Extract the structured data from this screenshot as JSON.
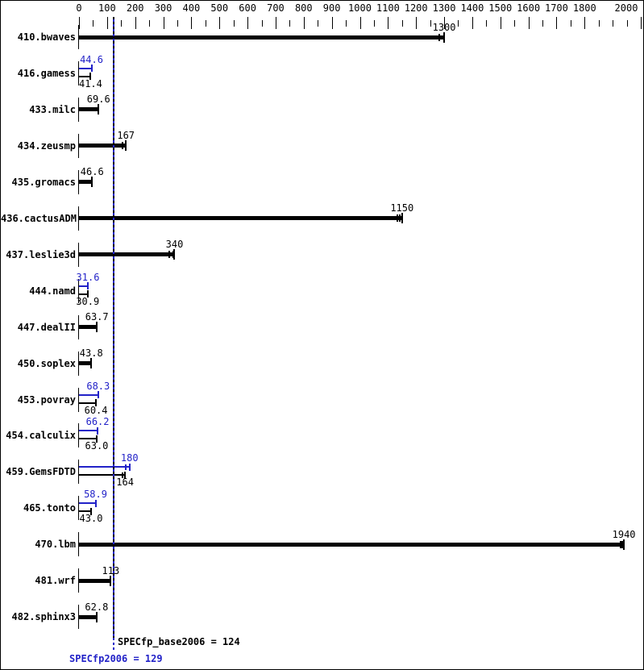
{
  "colors": {
    "base": "#000000",
    "peak": "#2222c8",
    "background": "#ffffff",
    "border": "#000000"
  },
  "chart_data": {
    "type": "bar",
    "orientation": "horizontal",
    "title": "",
    "xlabel": "",
    "ylabel": "",
    "xlim": [
      0,
      2000
    ],
    "x_major_tick": 100,
    "x_minor_tick": 50,
    "skipped_tick_labels": [
      1900
    ],
    "grid": false,
    "legend": "none",
    "benchmarks": [
      {
        "name": "410.bwaves",
        "base": {
          "label": "1300",
          "value": 1300,
          "run_marks": [
            -6,
            0
          ]
        },
        "peak": null
      },
      {
        "name": "416.gamess",
        "base": {
          "label": "41.4",
          "value": 41.4,
          "run_marks": [
            0
          ]
        },
        "peak": {
          "label": "44.6",
          "value": 44.6,
          "run_marks": [
            0
          ]
        }
      },
      {
        "name": "433.milc",
        "base": {
          "label": "69.6",
          "value": 69.6,
          "run_marks": [
            0
          ]
        },
        "peak": null
      },
      {
        "name": "434.zeusmp",
        "base": {
          "label": "167",
          "value": 167,
          "run_marks": [
            -4,
            0
          ]
        },
        "peak": null
      },
      {
        "name": "435.gromacs",
        "base": {
          "label": "46.6",
          "value": 46.6,
          "run_marks": [
            0
          ]
        },
        "peak": null
      },
      {
        "name": "436.cactusADM",
        "base": {
          "label": "1150",
          "value": 1150,
          "run_marks": [
            -6,
            -3,
            0
          ]
        },
        "peak": null
      },
      {
        "name": "437.leslie3d",
        "base": {
          "label": "340",
          "value": 340,
          "run_marks": [
            -6,
            -1,
            0
          ]
        },
        "peak": null
      },
      {
        "name": "444.namd",
        "base": {
          "label": "30.9",
          "value": 30.9,
          "run_marks": [
            0
          ]
        },
        "peak": {
          "label": "31.6",
          "value": 31.6,
          "run_marks": [
            0
          ]
        }
      },
      {
        "name": "447.dealII",
        "base": {
          "label": "63.7",
          "value": 63.7,
          "run_marks": [
            0
          ]
        },
        "peak": null
      },
      {
        "name": "450.soplex",
        "base": {
          "label": "43.8",
          "value": 43.8,
          "run_marks": [
            0
          ]
        },
        "peak": null
      },
      {
        "name": "453.povray",
        "base": {
          "label": "60.4",
          "value": 60.4,
          "run_marks": [
            0
          ]
        },
        "peak": {
          "label": "68.3",
          "value": 68.3,
          "run_marks": [
            0
          ]
        }
      },
      {
        "name": "454.calculix",
        "base": {
          "label": "63.0",
          "value": 63.0,
          "run_marks": [
            0
          ]
        },
        "peak": {
          "label": "66.2",
          "value": 66.2,
          "run_marks": [
            0
          ]
        }
      },
      {
        "name": "459.GemsFDTD",
        "base": {
          "label": "164",
          "value": 164,
          "run_marks": [
            -3,
            0
          ]
        },
        "peak": {
          "label": "180",
          "value": 180,
          "run_marks": [
            -5,
            0
          ]
        }
      },
      {
        "name": "465.tonto",
        "base": {
          "label": "43.0",
          "value": 43.0,
          "run_marks": [
            0
          ]
        },
        "peak": {
          "label": "58.9",
          "value": 58.9,
          "run_marks": [
            0
          ]
        }
      },
      {
        "name": "470.lbm",
        "base": {
          "label": "1940",
          "value": 1940,
          "run_marks": [
            -4,
            -2,
            0
          ]
        },
        "peak": null
      },
      {
        "name": "481.wrf",
        "base": {
          "label": "113",
          "value": 113,
          "run_marks": [
            0
          ]
        },
        "peak": null
      },
      {
        "name": "482.sphinx3",
        "base": {
          "label": "62.8",
          "value": 62.8,
          "run_marks": [
            0
          ]
        },
        "peak": null
      }
    ],
    "means": {
      "base": {
        "label": "SPECfp_base2006 = 124",
        "value": 124
      },
      "peak": {
        "label": "SPECfp2006 = 129",
        "value": 129
      }
    }
  }
}
